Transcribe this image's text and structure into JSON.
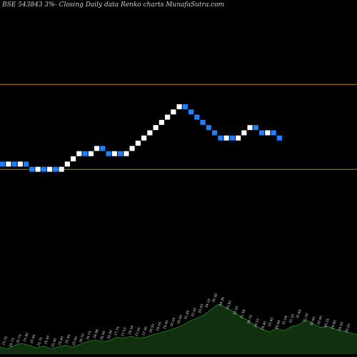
{
  "chart_data": {
    "type": "renko",
    "title": "BSE 543843 3%-  Closing Daily data  Renko  charts MunafaSutra.com",
    "colors": {
      "background": "#000000",
      "up_brick": "#ffffff",
      "down_brick": "#1e7fff",
      "ref_line": "#b8860b",
      "volume_area": "#103010",
      "volume_line": "#1f8a1f",
      "volume_label": "#d9d9d9"
    },
    "reference_levels": [
      166.8,
      150.5
    ],
    "bricks": [
      {
        "dir": "down",
        "close": 151.0
      },
      {
        "dir": "up",
        "close": 152.0
      },
      {
        "dir": "down",
        "close": 151.0
      },
      {
        "dir": "up",
        "close": 152.0
      },
      {
        "dir": "down",
        "close": 151.0
      },
      {
        "dir": "down",
        "close": 150.0
      },
      {
        "dir": "up",
        "close": 151.0
      },
      {
        "dir": "down",
        "close": 150.0
      },
      {
        "dir": "up",
        "close": 151.0
      },
      {
        "dir": "down",
        "close": 150.0
      },
      {
        "dir": "up",
        "close": 151.0
      },
      {
        "dir": "up",
        "close": 152.0
      },
      {
        "dir": "up",
        "close": 153.0
      },
      {
        "dir": "up",
        "close": 154.0
      },
      {
        "dir": "down",
        "close": 153.0
      },
      {
        "dir": "up",
        "close": 154.0
      },
      {
        "dir": "up",
        "close": 155.0
      },
      {
        "dir": "down",
        "close": 154.0
      },
      {
        "dir": "down",
        "close": 153.0
      },
      {
        "dir": "up",
        "close": 154.0
      },
      {
        "dir": "down",
        "close": 153.0
      },
      {
        "dir": "up",
        "close": 154.0
      },
      {
        "dir": "up",
        "close": 155.0
      },
      {
        "dir": "up",
        "close": 156.0
      },
      {
        "dir": "up",
        "close": 157.0
      },
      {
        "dir": "up",
        "close": 158.0
      },
      {
        "dir": "up",
        "close": 159.0
      },
      {
        "dir": "up",
        "close": 160.0
      },
      {
        "dir": "up",
        "close": 161.0
      },
      {
        "dir": "up",
        "close": 162.0
      },
      {
        "dir": "up",
        "close": 163.0
      },
      {
        "dir": "down",
        "close": 162.0
      },
      {
        "dir": "down",
        "close": 161.0
      },
      {
        "dir": "down",
        "close": 160.0
      },
      {
        "dir": "down",
        "close": 159.0
      },
      {
        "dir": "down",
        "close": 158.0
      },
      {
        "dir": "down",
        "close": 157.0
      },
      {
        "dir": "down",
        "close": 156.0
      },
      {
        "dir": "up",
        "close": 157.0
      },
      {
        "dir": "down",
        "close": 156.0
      },
      {
        "dir": "up",
        "close": 157.0
      },
      {
        "dir": "up",
        "close": 158.0
      },
      {
        "dir": "up",
        "close": 159.0
      },
      {
        "dir": "down",
        "close": 158.0
      },
      {
        "dir": "down",
        "close": 157.0
      },
      {
        "dir": "up",
        "close": 158.0
      },
      {
        "dir": "down",
        "close": 157.0
      },
      {
        "dir": "down",
        "close": 156.0
      }
    ],
    "volume_labels": [
      "25.75",
      "25.73",
      "25.73",
      "25.90",
      "25.90",
      "25.75",
      "25.90",
      "25.40",
      "25.40",
      "25.95",
      "25.95",
      "26.70",
      "26.73",
      "26.96",
      "26.90",
      "26.90",
      "27.75",
      "27.53",
      "28.34",
      "27.55",
      "27.90",
      "28.50",
      "29.05",
      "29.40",
      "30.05",
      "30.60",
      "31.85",
      "32.45",
      "33.00",
      "34.10",
      "35.38",
      "34.36",
      "33.90",
      "32.50",
      "31.58",
      "30.75",
      "30.22",
      "29.40",
      "30.40",
      "29.64",
      "31.04",
      "31.50",
      "32.60",
      "31.50",
      "30.60",
      "30.90",
      "30.25",
      "29.80",
      "29.50",
      "29.20"
    ],
    "volume": [
      0.4,
      0.3,
      0.5,
      0.6,
      0.5,
      0.35,
      0.45,
      0.3,
      0.4,
      0.5,
      0.4,
      0.55,
      0.7,
      0.8,
      0.7,
      0.75,
      0.95,
      0.9,
      1.0,
      0.9,
      0.95,
      1.1,
      1.2,
      1.3,
      1.45,
      1.6,
      1.85,
      2.0,
      2.2,
      2.5,
      2.8,
      2.6,
      2.4,
      2.1,
      1.9,
      1.6,
      1.4,
      1.25,
      1.45,
      1.3,
      1.55,
      1.65,
      1.9,
      1.7,
      1.5,
      1.55,
      1.4,
      1.3,
      1.2,
      1.1
    ]
  }
}
